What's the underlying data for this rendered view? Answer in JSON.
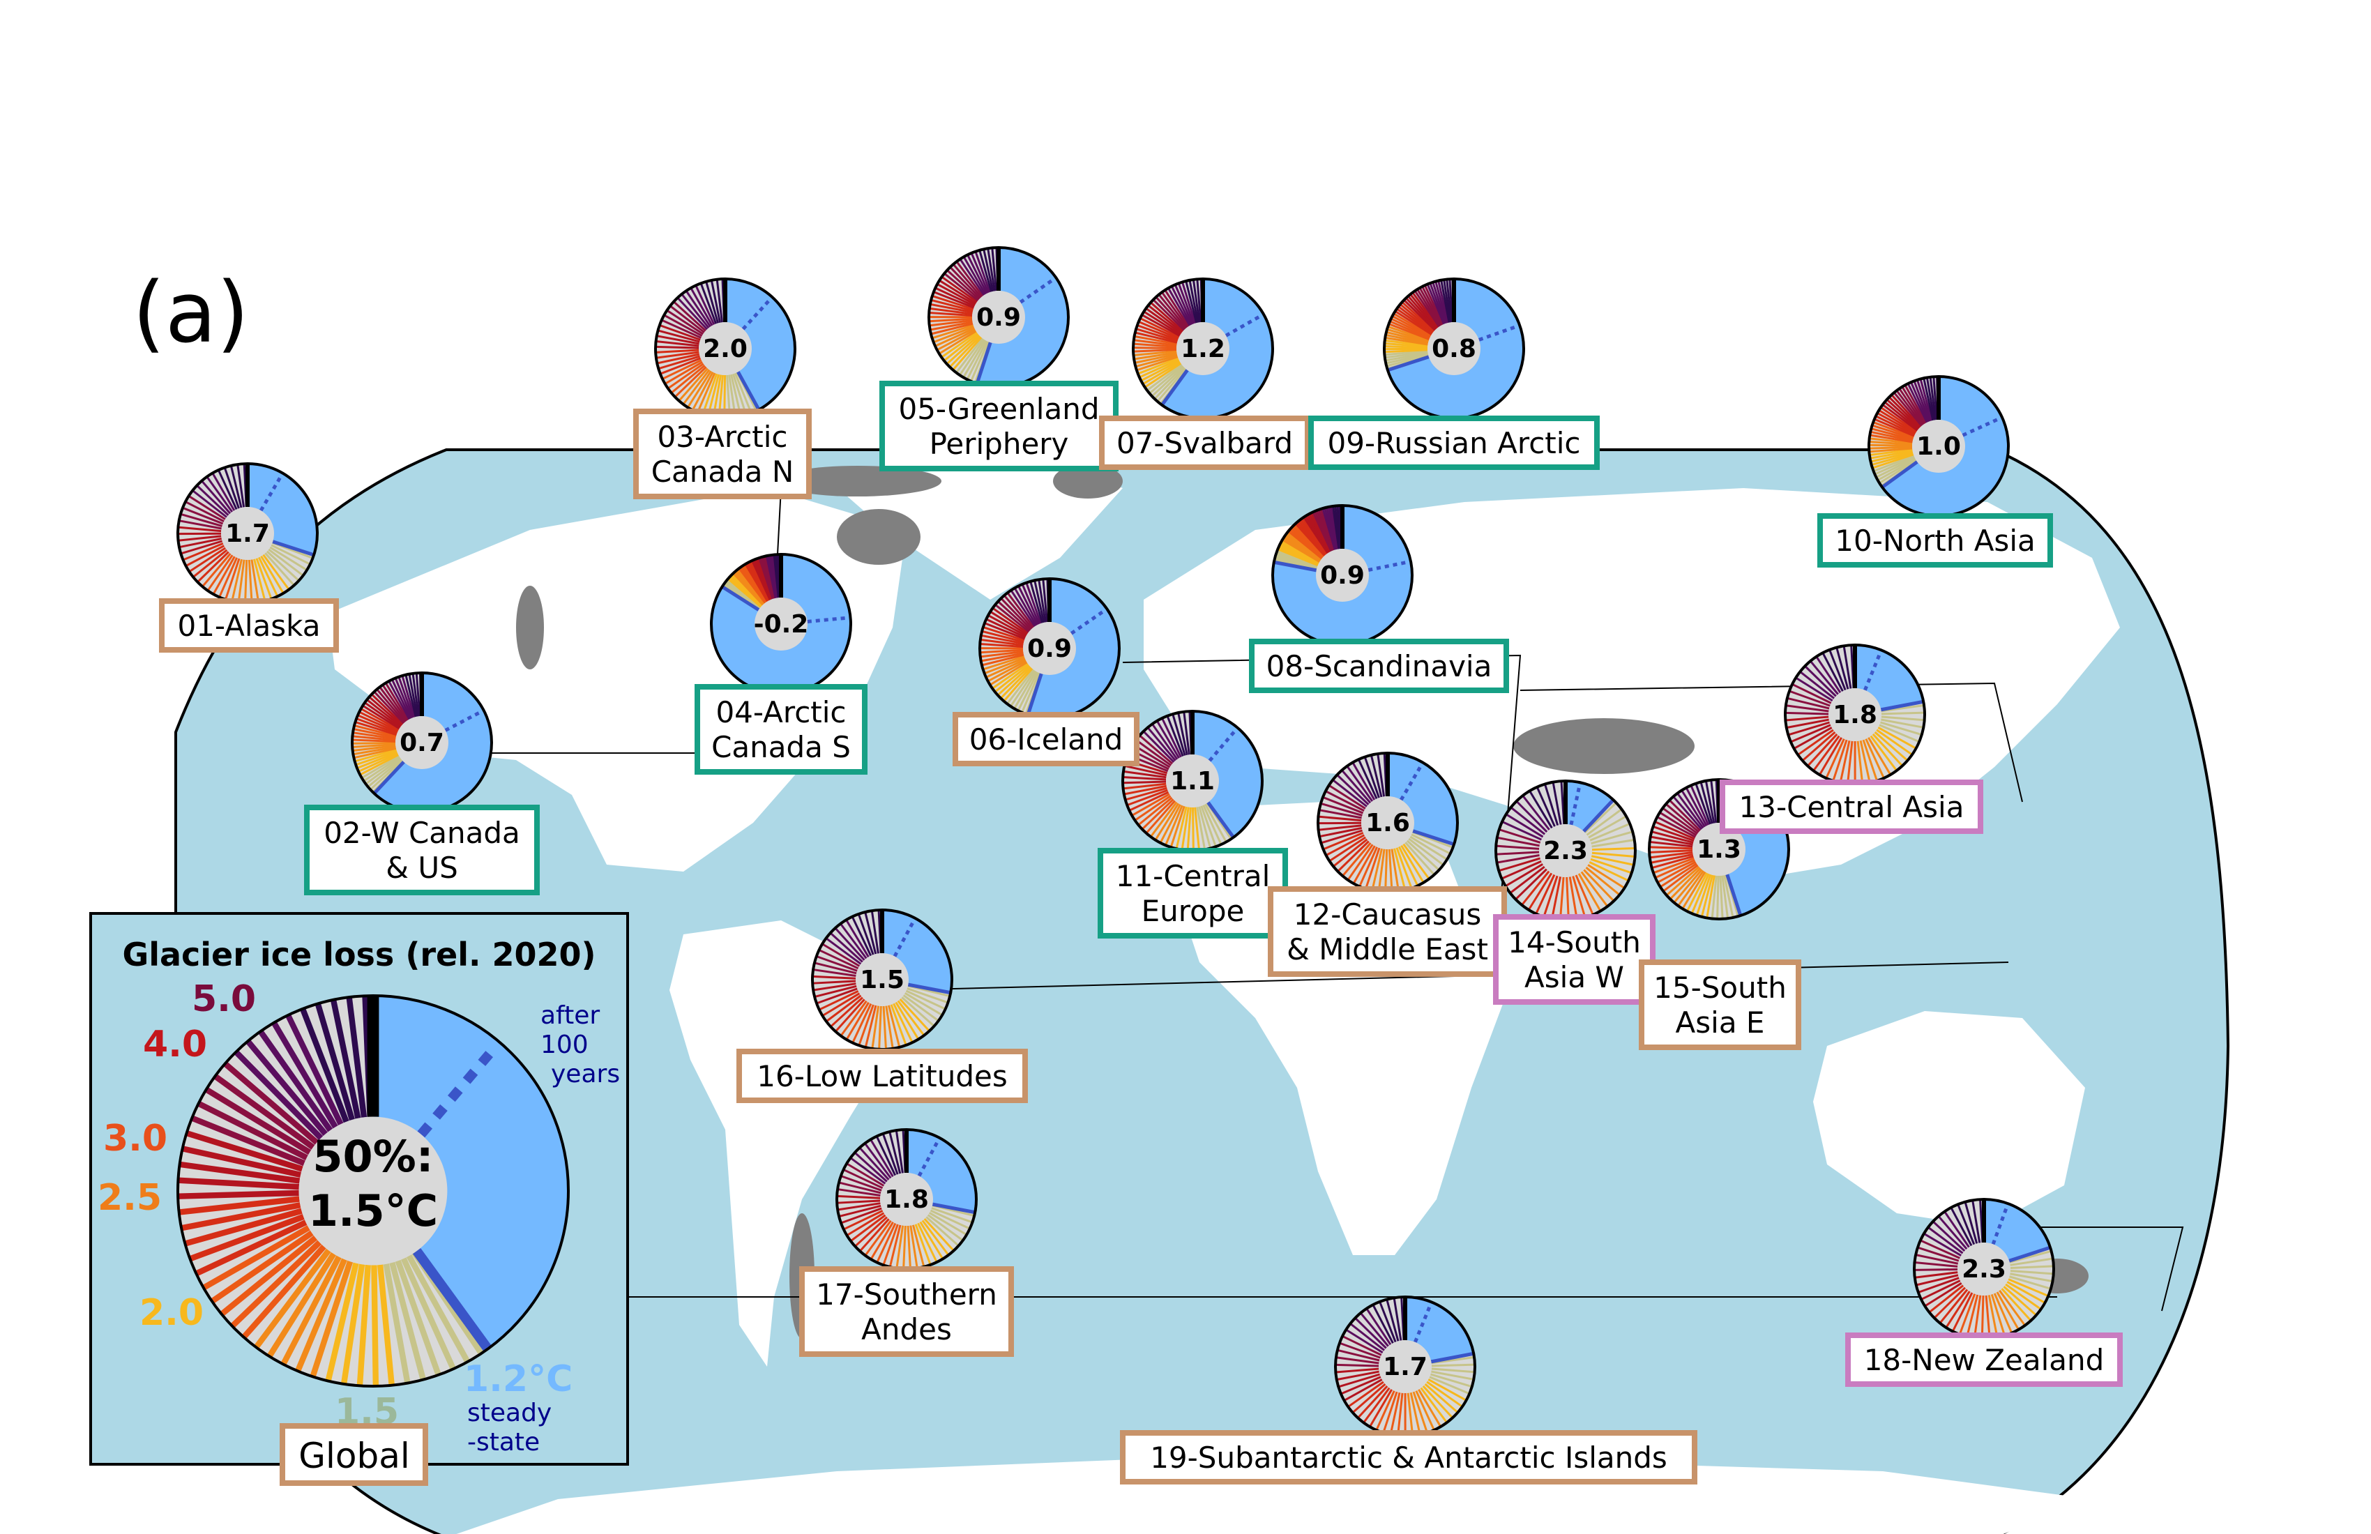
{
  "panel_label": "(a)",
  "legend": {
    "title": "Glacier ice loss (rel. 2020)",
    "center_value": "50%:",
    "center_temp": "1.5°C",
    "after_note": [
      "after",
      "100",
      "years"
    ],
    "steady_note": [
      "steady",
      "-state"
    ],
    "name": "Global",
    "levels": [
      {
        "label": "5.0",
        "color": "#7a0b3c"
      },
      {
        "label": "4.0",
        "color": "#c4161c"
      },
      {
        "label": "3.0",
        "color": "#e8501b"
      },
      {
        "label": "2.5",
        "color": "#ef7d1a"
      },
      {
        "label": "2.0",
        "color": "#f7b81e"
      },
      {
        "label": "1.5",
        "color": "#9bb89a"
      },
      {
        "label": "1.2°C",
        "color": "#74b9ff"
      }
    ]
  },
  "regions": [
    {
      "id": "01",
      "name": [
        "01-Alaska"
      ],
      "value": "1.7",
      "border": "#c8936a"
    },
    {
      "id": "02",
      "name": [
        "02-W Canada",
        "& US"
      ],
      "value": "0.7",
      "border": "#16a085"
    },
    {
      "id": "03",
      "name": [
        "03-Arctic",
        "Canada N"
      ],
      "value": "2.0",
      "border": "#c8936a"
    },
    {
      "id": "04",
      "name": [
        "04-Arctic",
        "Canada S"
      ],
      "value": "-0.2",
      "border": "#16a085"
    },
    {
      "id": "05",
      "name": [
        "05-Greenland",
        "Periphery"
      ],
      "value": "0.9",
      "border": "#16a085"
    },
    {
      "id": "06",
      "name": [
        "06-Iceland"
      ],
      "value": "0.9",
      "border": "#c8936a"
    },
    {
      "id": "07",
      "name": [
        "07-Svalbard"
      ],
      "value": "1.2",
      "border": "#c8936a"
    },
    {
      "id": "08",
      "name": [
        "08-Scandinavia"
      ],
      "value": "0.9",
      "border": "#16a085"
    },
    {
      "id": "09",
      "name": [
        "09-Russian Arctic"
      ],
      "value": "0.8",
      "border": "#16a085"
    },
    {
      "id": "10",
      "name": [
        "10-North Asia"
      ],
      "value": "1.0",
      "border": "#16a085"
    },
    {
      "id": "11",
      "name": [
        "11-Central",
        "Europe"
      ],
      "value": "1.1",
      "border": "#16a085"
    },
    {
      "id": "12",
      "name": [
        "12-Caucasus",
        "& Middle East"
      ],
      "value": "1.6",
      "border": "#c8936a"
    },
    {
      "id": "13",
      "name": [
        "13-Central Asia"
      ],
      "value": "1.8",
      "border": "#c97cc0"
    },
    {
      "id": "14",
      "name": [
        "14-South",
        "Asia W"
      ],
      "value": "2.3",
      "border": "#c97cc0"
    },
    {
      "id": "15",
      "name": [
        "15-South",
        "Asia E"
      ],
      "value": "1.3",
      "border": "#c8936a"
    },
    {
      "id": "16",
      "name": [
        "16-Low Latitudes"
      ],
      "value": "1.5",
      "border": "#c8936a"
    },
    {
      "id": "17",
      "name": [
        "17-Southern",
        "Andes"
      ],
      "value": "1.8",
      "border": "#c8936a"
    },
    {
      "id": "18",
      "name": [
        "18-New Zealand"
      ],
      "value": "2.3",
      "border": "#c97cc0"
    },
    {
      "id": "19",
      "name": [
        "19-Subantarctic & Antarctic Islands"
      ],
      "value": "1.7",
      "border": "#c8936a"
    }
  ]
}
